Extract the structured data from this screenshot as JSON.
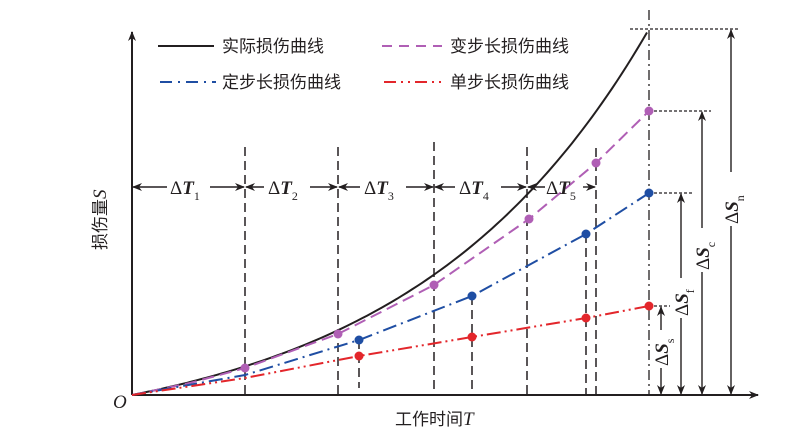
{
  "legend": {
    "actual": "实际损伤曲线",
    "variable_step": "变步长损伤曲线",
    "fixed_step": "定步长损伤曲线",
    "single_step": "单步长损伤曲线"
  },
  "axes": {
    "origin": "O",
    "y_label": "损伤量",
    "y_symbol": "S",
    "x_label": "工作时间",
    "x_symbol": "T"
  },
  "intervals": [
    {
      "delta": "Δ",
      "sym": "T",
      "sub": "1"
    },
    {
      "delta": "Δ",
      "sym": "T",
      "sub": "2"
    },
    {
      "delta": "Δ",
      "sym": "T",
      "sub": "3"
    },
    {
      "delta": "Δ",
      "sym": "T",
      "sub": "4"
    },
    {
      "delta": "Δ",
      "sym": "T",
      "sub": "5"
    }
  ],
  "increments": [
    {
      "delta": "Δ",
      "sym": "S",
      "sub": "s"
    },
    {
      "delta": "Δ",
      "sym": "S",
      "sub": "f"
    },
    {
      "delta": "Δ",
      "sym": "S",
      "sub": "c"
    },
    {
      "delta": "Δ",
      "sym": "S",
      "sub": "n"
    }
  ],
  "colors": {
    "actual": "#231f20",
    "variable_step": "#b05fb5",
    "fixed_step": "#1f4ea3",
    "single_step": "#e3262b"
  }
}
